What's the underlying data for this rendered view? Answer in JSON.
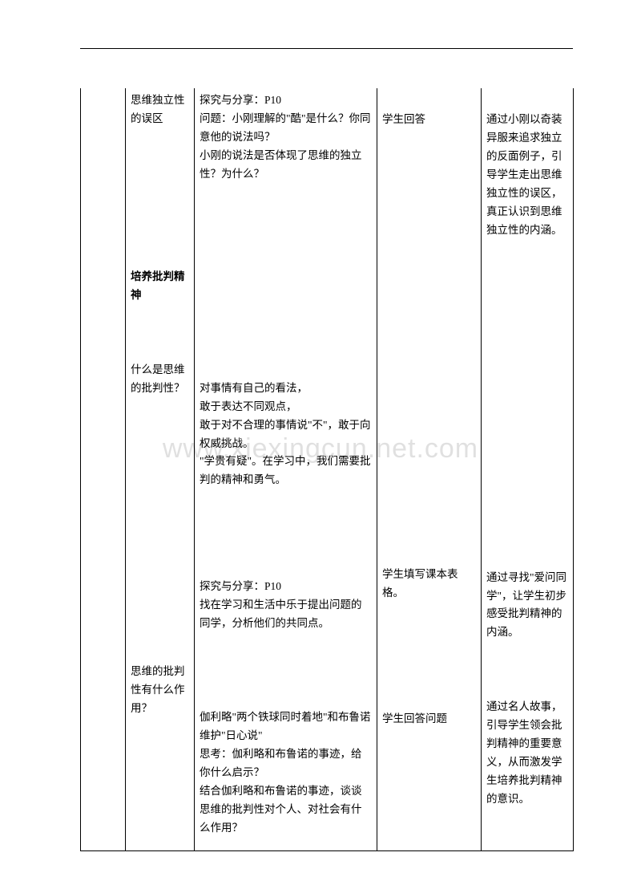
{
  "watermark": "www.xiexingcun.net.com",
  "col2": {
    "s1": "思维独立性的误区",
    "s2": "培养批判精神",
    "s3": "什么是思维的批判性？",
    "s4": "思维的批判性有什么作用？"
  },
  "col3": {
    "a1": "探究与分享：P10",
    "a2": "问题：小刚理解的\"酷\"是什么？你同意他的说法吗？",
    "a3": "小刚的说法是否体现了思维的独立性？为什么？",
    "b1": "对事情有自己的看法，",
    "b2": "敢于表达不同观点，",
    "b3": "敢于对不合理的事情说\"不\"，敢于向权威挑战。",
    "b4": "\"学贵有疑\"。在学习中，我们需要批判的精神和勇气。",
    "c1": "探究与分享：P10",
    "c2": "找在学习和生活中乐于提出问题的同学，分析他们的共同点。",
    "d1": "伽利略\"两个铁球同时着地\"和布鲁诺维护\"日心说\"",
    "d2": "思考：伽利略和布鲁诺的事迹，给你什么启示？",
    "d3": "结合伽利略和布鲁诺的事迹，谈谈思维的批判性对个人、对社会有什么作用？"
  },
  "col4": {
    "a": "学生回答",
    "b": "学生填写课本表格。",
    "c": "学生回答问题"
  },
  "col5": {
    "a": "通过小刚以奇装异服来追求独立的反面例子，引导学生走出思维独立性的误区，真正认识到思维独立性的内涵。",
    "b": "通过寻找\"爱问同学\"，让学生初步感受批判精神的内涵。",
    "c": "通过名人故事，引导学生领会批判精神的重要意义，从而激发学生培养批判精神的意识。"
  }
}
